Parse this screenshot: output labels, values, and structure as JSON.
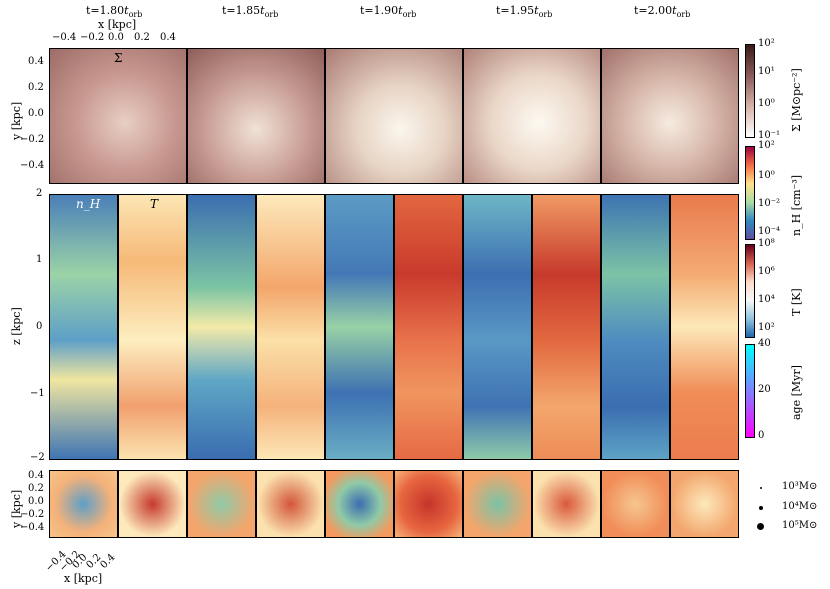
{
  "titles": [
    "t=1.80 t_orb",
    "t=1.85 t_orb",
    "t=1.90 t_orb",
    "t=1.95 t_orb",
    "t=2.00 t_orb"
  ],
  "top_axis": {
    "label": "x [kpc]",
    "ticks": [
      "−0.4",
      "−0.2",
      "0.0",
      "0.2",
      "0.4"
    ]
  },
  "y_axis_top": {
    "label": "y [kpc]",
    "ticks": [
      "0.4",
      "0.2",
      "0.0",
      "−0.2",
      "−0.4"
    ]
  },
  "z_axis": {
    "label": "z [kpc]",
    "ticks": [
      "2",
      "1",
      "0",
      "−1",
      "−2"
    ]
  },
  "y_axis_bottom": {
    "label": "y [kpc]",
    "ticks": [
      "0.4",
      "0.2",
      "0.0",
      "−0.2",
      "−0.4"
    ]
  },
  "x_axis_bottom": {
    "label": "x [kpc]",
    "ticks": [
      "−0.4",
      "−0.2",
      "0.0",
      "0.2",
      "0.4"
    ]
  },
  "panel_symbols": {
    "sigma": "Σ",
    "nH": "n_H",
    "T": "T"
  },
  "colorbars": {
    "sigma": {
      "label": "Σ [M⊙pc⁻²]",
      "ticks": [
        "10²",
        "10¹",
        "10⁰",
        "10⁻¹"
      ],
      "colors": [
        "#3b1a1a",
        "#8a5a5a",
        "#d6b3a8",
        "#ffffff"
      ]
    },
    "nH": {
      "label": "n_H [cm⁻³]",
      "ticks": [
        "10²",
        "10⁰",
        "10⁻²",
        "10⁻⁴"
      ],
      "colors": [
        "#9e0142",
        "#f46d43",
        "#fee08b",
        "#abdda4",
        "#3288bd",
        "#5e4fa2"
      ]
    },
    "T": {
      "label": "T [K]",
      "ticks": [
        "10⁸",
        "10⁶",
        "10⁴",
        "10²"
      ],
      "colors": [
        "#67001f",
        "#d6604d",
        "#fddbc7",
        "#f7f7f7",
        "#92c5de",
        "#2166ac"
      ]
    },
    "age": {
      "label": "age [Myr]",
      "ticks": [
        "40",
        "20",
        "0"
      ],
      "colors": [
        "#00ffff",
        "#8080ff",
        "#ff00ff"
      ]
    }
  },
  "legend": {
    "items": [
      "10³M⊙",
      "10⁴M⊙",
      "10⁵M⊙"
    ]
  }
}
